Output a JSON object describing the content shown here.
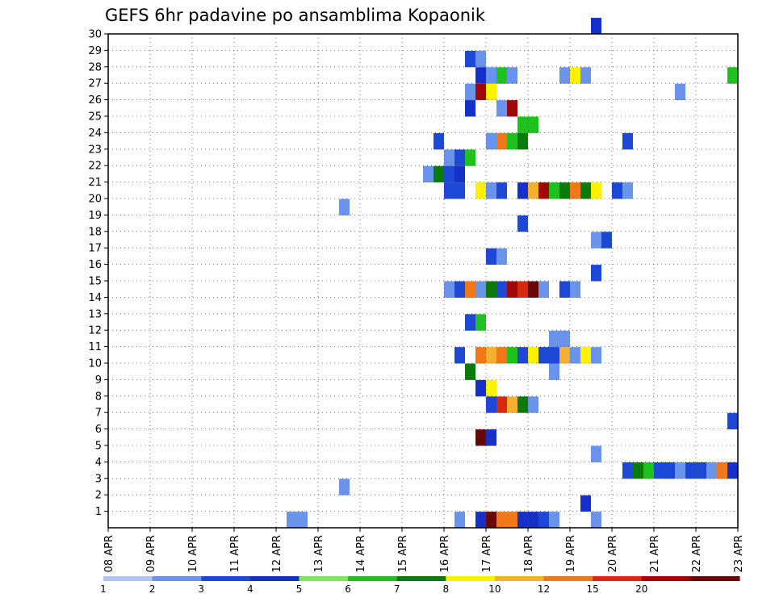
{
  "chart_data": {
    "type": "heatmap",
    "title": "GEFS 6hr padavine po ansamblima Kopaonik",
    "xlabel": "",
    "ylabel": "",
    "x_ticks": [
      "08 APR",
      "09 APR",
      "10 APR",
      "11 APR",
      "12 APR",
      "13 APR",
      "14 APR",
      "15 APR",
      "16 APR",
      "17 APR",
      "18 APR",
      "19 APR",
      "20 APR",
      "21 APR",
      "22 APR",
      "23 APR"
    ],
    "xlim_days": [
      0,
      15
    ],
    "y_ticks": [
      "1",
      "2",
      "3",
      "4",
      "5",
      "6",
      "7",
      "8",
      "9",
      "10",
      "11",
      "12",
      "13",
      "14",
      "15",
      "16",
      "17",
      "18",
      "19",
      "20",
      "21",
      "22",
      "23",
      "24",
      "25",
      "26",
      "27",
      "28",
      "29",
      "30"
    ],
    "ylim": [
      0,
      30
    ],
    "grid": true,
    "color_levels": [
      "1",
      "2",
      "3",
      "4",
      "5",
      "6",
      "7",
      "8",
      "10",
      "12",
      "15",
      "20"
    ],
    "colors": [
      "#b0c4f4",
      "#6a94ec",
      "#1d48d6",
      "#1530c8",
      "#7fe65c",
      "#1fc11f",
      "#0a7a0a",
      "#fff200",
      "#f6b030",
      "#f07818",
      "#d42a10",
      "#a00808",
      "#6a0606"
    ],
    "cells": [
      {
        "d": 11.75,
        "m": 30,
        "c": 3
      },
      {
        "d": 8.75,
        "m": 28,
        "c": 2
      },
      {
        "d": 9.0,
        "m": 28,
        "c": 1
      },
      {
        "d": 9.0,
        "m": 27,
        "c": 3
      },
      {
        "d": 9.25,
        "m": 27,
        "c": 1
      },
      {
        "d": 9.5,
        "m": 27,
        "c": 5
      },
      {
        "d": 9.75,
        "m": 27,
        "c": 1
      },
      {
        "d": 11.0,
        "m": 27,
        "c": 1
      },
      {
        "d": 11.25,
        "m": 27,
        "c": 7
      },
      {
        "d": 11.5,
        "m": 27,
        "c": 1
      },
      {
        "d": 15.0,
        "m": 27,
        "c": 5
      },
      {
        "d": 8.75,
        "m": 26,
        "c": 1
      },
      {
        "d": 9.0,
        "m": 26,
        "c": 11
      },
      {
        "d": 9.25,
        "m": 26,
        "c": 7
      },
      {
        "d": 13.75,
        "m": 26,
        "c": 1
      },
      {
        "d": 8.75,
        "m": 25,
        "c": 3
      },
      {
        "d": 9.5,
        "m": 25,
        "c": 1
      },
      {
        "d": 9.75,
        "m": 25,
        "c": 11
      },
      {
        "d": 10.0,
        "m": 24,
        "c": 5
      },
      {
        "d": 10.25,
        "m": 24,
        "c": 5
      },
      {
        "d": 8.0,
        "m": 23,
        "c": 2
      },
      {
        "d": 9.25,
        "m": 23,
        "c": 1
      },
      {
        "d": 9.5,
        "m": 23,
        "c": 9
      },
      {
        "d": 9.75,
        "m": 23,
        "c": 5
      },
      {
        "d": 10.0,
        "m": 23,
        "c": 6
      },
      {
        "d": 12.5,
        "m": 23,
        "c": 2
      },
      {
        "d": 8.25,
        "m": 22,
        "c": 1
      },
      {
        "d": 8.5,
        "m": 22,
        "c": 2
      },
      {
        "d": 8.75,
        "m": 22,
        "c": 5
      },
      {
        "d": 7.75,
        "m": 21,
        "c": 1
      },
      {
        "d": 8.0,
        "m": 21,
        "c": 6
      },
      {
        "d": 8.25,
        "m": 21,
        "c": 2
      },
      {
        "d": 8.5,
        "m": 21,
        "c": 3
      },
      {
        "d": 8.25,
        "m": 20,
        "c": 2
      },
      {
        "d": 8.5,
        "m": 20,
        "c": 2
      },
      {
        "d": 9.0,
        "m": 20,
        "c": 7
      },
      {
        "d": 9.25,
        "m": 20,
        "c": 1
      },
      {
        "d": 9.5,
        "m": 20,
        "c": 2
      },
      {
        "d": 10.0,
        "m": 20,
        "c": 3
      },
      {
        "d": 10.25,
        "m": 20,
        "c": 8
      },
      {
        "d": 10.5,
        "m": 20,
        "c": 11
      },
      {
        "d": 10.75,
        "m": 20,
        "c": 5
      },
      {
        "d": 11.0,
        "m": 20,
        "c": 6
      },
      {
        "d": 11.25,
        "m": 20,
        "c": 9
      },
      {
        "d": 11.5,
        "m": 20,
        "c": 6
      },
      {
        "d": 11.75,
        "m": 20,
        "c": 7
      },
      {
        "d": 12.25,
        "m": 20,
        "c": 2
      },
      {
        "d": 12.5,
        "m": 20,
        "c": 1
      },
      {
        "d": 5.75,
        "m": 19,
        "c": 1
      },
      {
        "d": 10.0,
        "m": 18,
        "c": 2
      },
      {
        "d": 11.75,
        "m": 17,
        "c": 1
      },
      {
        "d": 12.0,
        "m": 17,
        "c": 2
      },
      {
        "d": 9.25,
        "m": 16,
        "c": 2
      },
      {
        "d": 9.5,
        "m": 16,
        "c": 1
      },
      {
        "d": 11.75,
        "m": 15,
        "c": 2
      },
      {
        "d": 8.25,
        "m": 14,
        "c": 1
      },
      {
        "d": 8.5,
        "m": 14,
        "c": 2
      },
      {
        "d": 8.75,
        "m": 14,
        "c": 9
      },
      {
        "d": 9.0,
        "m": 14,
        "c": 1
      },
      {
        "d": 9.25,
        "m": 14,
        "c": 6
      },
      {
        "d": 9.5,
        "m": 14,
        "c": 2
      },
      {
        "d": 9.75,
        "m": 14,
        "c": 11
      },
      {
        "d": 10.0,
        "m": 14,
        "c": 10
      },
      {
        "d": 10.25,
        "m": 14,
        "c": 12
      },
      {
        "d": 10.5,
        "m": 14,
        "c": 1
      },
      {
        "d": 11.0,
        "m": 14,
        "c": 2
      },
      {
        "d": 11.25,
        "m": 14,
        "c": 1
      },
      {
        "d": 8.75,
        "m": 12,
        "c": 2
      },
      {
        "d": 9.0,
        "m": 12,
        "c": 5
      },
      {
        "d": 10.75,
        "m": 11,
        "c": 1
      },
      {
        "d": 11.0,
        "m": 11,
        "c": 1
      },
      {
        "d": 8.5,
        "m": 10,
        "c": 2
      },
      {
        "d": 9.0,
        "m": 10,
        "c": 9
      },
      {
        "d": 9.25,
        "m": 10,
        "c": 8
      },
      {
        "d": 9.5,
        "m": 10,
        "c": 9
      },
      {
        "d": 9.75,
        "m": 10,
        "c": 5
      },
      {
        "d": 10.0,
        "m": 10,
        "c": 2
      },
      {
        "d": 10.25,
        "m": 10,
        "c": 7
      },
      {
        "d": 10.5,
        "m": 10,
        "c": 2
      },
      {
        "d": 10.75,
        "m": 10,
        "c": 2
      },
      {
        "d": 11.0,
        "m": 10,
        "c": 8
      },
      {
        "d": 11.25,
        "m": 10,
        "c": 1
      },
      {
        "d": 11.5,
        "m": 10,
        "c": 7
      },
      {
        "d": 11.75,
        "m": 10,
        "c": 1
      },
      {
        "d": 8.75,
        "m": 9,
        "c": 6
      },
      {
        "d": 10.75,
        "m": 9,
        "c": 1
      },
      {
        "d": 9.0,
        "m": 8,
        "c": 3
      },
      {
        "d": 9.25,
        "m": 8,
        "c": 7
      },
      {
        "d": 9.25,
        "m": 7,
        "c": 2
      },
      {
        "d": 9.5,
        "m": 7,
        "c": 10
      },
      {
        "d": 9.75,
        "m": 7,
        "c": 8
      },
      {
        "d": 10.0,
        "m": 7,
        "c": 6
      },
      {
        "d": 10.25,
        "m": 7,
        "c": 1
      },
      {
        "d": 15.0,
        "m": 6,
        "c": 2
      },
      {
        "d": 9.0,
        "m": 5,
        "c": 12
      },
      {
        "d": 9.25,
        "m": 5,
        "c": 3
      },
      {
        "d": 11.75,
        "m": 4,
        "c": 1
      },
      {
        "d": 12.5,
        "m": 3,
        "c": 2
      },
      {
        "d": 12.75,
        "m": 3,
        "c": 6
      },
      {
        "d": 13.0,
        "m": 3,
        "c": 5
      },
      {
        "d": 13.25,
        "m": 3,
        "c": 2
      },
      {
        "d": 13.5,
        "m": 3,
        "c": 2
      },
      {
        "d": 13.75,
        "m": 3,
        "c": 1
      },
      {
        "d": 14.0,
        "m": 3,
        "c": 2
      },
      {
        "d": 14.25,
        "m": 3,
        "c": 2
      },
      {
        "d": 14.5,
        "m": 3,
        "c": 1
      },
      {
        "d": 14.75,
        "m": 3,
        "c": 9
      },
      {
        "d": 15.0,
        "m": 3,
        "c": 3
      },
      {
        "d": 5.75,
        "m": 2,
        "c": 1
      },
      {
        "d": 11.5,
        "m": 1,
        "c": 3
      },
      {
        "d": 4.5,
        "m": 0,
        "c": 1
      },
      {
        "d": 4.75,
        "m": 0,
        "c": 1
      },
      {
        "d": 8.5,
        "m": 0,
        "c": 1
      },
      {
        "d": 9.0,
        "m": 0,
        "c": 3
      },
      {
        "d": 9.25,
        "m": 0,
        "c": 12
      },
      {
        "d": 9.5,
        "m": 0,
        "c": 9
      },
      {
        "d": 9.75,
        "m": 0,
        "c": 9
      },
      {
        "d": 10.0,
        "m": 0,
        "c": 3
      },
      {
        "d": 10.25,
        "m": 0,
        "c": 3
      },
      {
        "d": 10.5,
        "m": 0,
        "c": 2
      },
      {
        "d": 10.75,
        "m": 0,
        "c": 1
      },
      {
        "d": 11.75,
        "m": 0,
        "c": 1
      }
    ]
  }
}
